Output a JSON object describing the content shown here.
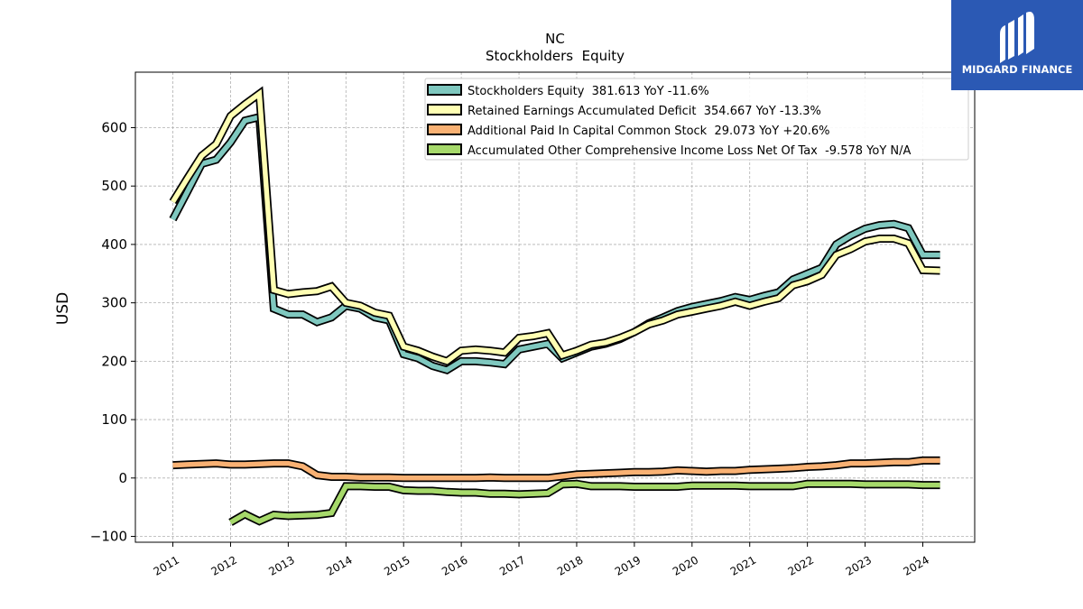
{
  "logo": {
    "text": "MIDGARD FINANCE",
    "bg_color": "#2b59b4",
    "icon": "midgard-logo-icon"
  },
  "chart_data": {
    "type": "line",
    "title": "NC",
    "subtitle": "Stockholders  Equity",
    "xlabel": "",
    "ylabel": "USD",
    "ylim": [
      -110,
      695
    ],
    "xlim": [
      2010.35,
      2024.9
    ],
    "grid": true,
    "legend_position": "top-right",
    "yticks": [
      -100,
      0,
      100,
      200,
      300,
      400,
      500,
      600
    ],
    "ytick_labels": [
      "−100",
      "0",
      "100",
      "200",
      "300",
      "400",
      "500",
      "600"
    ],
    "xticks": [
      2011,
      2012,
      2013,
      2014,
      2015,
      2016,
      2017,
      2018,
      2019,
      2020,
      2021,
      2022,
      2023,
      2024
    ],
    "xtick_labels": [
      "2011",
      "2012",
      "2013",
      "2014",
      "2015",
      "2016",
      "2017",
      "2018",
      "2019",
      "2020",
      "2021",
      "2022",
      "2023",
      "2024"
    ],
    "series": [
      {
        "name": "Stockholders Equity  381.613 YoY -11.6%",
        "color": "#7fc8bf",
        "x": [
          2011.0,
          2011.25,
          2011.5,
          2011.75,
          2012.0,
          2012.25,
          2012.5,
          2012.75,
          2013.0,
          2013.25,
          2013.5,
          2013.75,
          2014.0,
          2014.25,
          2014.5,
          2014.75,
          2015.0,
          2015.25,
          2015.5,
          2015.75,
          2016.0,
          2016.25,
          2016.5,
          2016.75,
          2017.0,
          2017.25,
          2017.5,
          2017.75,
          2018.0,
          2018.25,
          2018.5,
          2018.75,
          2019.0,
          2019.25,
          2019.5,
          2019.75,
          2020.0,
          2020.25,
          2020.5,
          2020.75,
          2021.0,
          2021.25,
          2021.5,
          2021.75,
          2022.0,
          2022.25,
          2022.5,
          2022.75,
          2023.0,
          2023.25,
          2023.5,
          2023.75,
          2024.0,
          2024.3
        ],
        "values": [
          443,
          490,
          538,
          545,
          575,
          612,
          618,
          290,
          280,
          280,
          267,
          275,
          295,
          290,
          275,
          270,
          212,
          205,
          192,
          185,
          200,
          200,
          198,
          195,
          220,
          225,
          230,
          205,
          215,
          225,
          230,
          238,
          250,
          265,
          275,
          286,
          293,
          298,
          303,
          310,
          305,
          312,
          318,
          340,
          350,
          360,
          400,
          415,
          427,
          433,
          435,
          428,
          382,
          382
        ]
      },
      {
        "name": "Retained Earnings Accumulated Deficit  354.667 YoY -13.3%",
        "color": "#ffffb3",
        "x": [
          2011.0,
          2011.25,
          2011.5,
          2011.75,
          2012.0,
          2012.25,
          2012.5,
          2012.75,
          2013.0,
          2013.25,
          2013.5,
          2013.75,
          2014.0,
          2014.25,
          2014.5,
          2014.75,
          2015.0,
          2015.25,
          2015.5,
          2015.75,
          2016.0,
          2016.25,
          2016.5,
          2016.75,
          2017.0,
          2017.25,
          2017.5,
          2017.75,
          2018.0,
          2018.25,
          2018.5,
          2018.75,
          2019.0,
          2019.25,
          2019.5,
          2019.75,
          2020.0,
          2020.25,
          2020.5,
          2020.75,
          2021.0,
          2021.25,
          2021.5,
          2021.75,
          2022.0,
          2022.25,
          2022.5,
          2022.75,
          2023.0,
          2023.25,
          2023.5,
          2023.75,
          2024.0,
          2024.3
        ],
        "values": [
          473,
          513,
          552,
          572,
          620,
          640,
          658,
          322,
          315,
          318,
          320,
          328,
          300,
          295,
          283,
          278,
          225,
          218,
          208,
          200,
          218,
          220,
          218,
          215,
          240,
          243,
          248,
          210,
          218,
          228,
          232,
          240,
          250,
          263,
          270,
          280,
          285,
          290,
          295,
          302,
          295,
          302,
          308,
          330,
          337,
          348,
          382,
          392,
          405,
          410,
          410,
          402,
          356,
          355
        ]
      },
      {
        "name": "Additional Paid In Capital Common Stock  29.073 YoY +20.6%",
        "color": "#f9b173",
        "x": [
          2011.0,
          2011.25,
          2011.5,
          2011.75,
          2012.0,
          2012.25,
          2012.5,
          2012.75,
          2013.0,
          2013.25,
          2013.5,
          2013.75,
          2014.0,
          2014.25,
          2014.5,
          2014.75,
          2015.0,
          2015.25,
          2015.5,
          2015.75,
          2016.0,
          2016.25,
          2016.5,
          2016.75,
          2017.0,
          2017.25,
          2017.5,
          2017.75,
          2018.0,
          2018.25,
          2018.5,
          2018.75,
          2019.0,
          2019.25,
          2019.5,
          2019.75,
          2020.0,
          2020.25,
          2020.5,
          2020.75,
          2021.0,
          2021.25,
          2021.5,
          2021.75,
          2022.0,
          2022.25,
          2022.5,
          2022.75,
          2023.0,
          2023.25,
          2023.5,
          2023.75,
          2024.0,
          2024.3
        ],
        "values": [
          22,
          23,
          24,
          25,
          23,
          23,
          24,
          25,
          25,
          20,
          5,
          2,
          2,
          1,
          1,
          1,
          0,
          0,
          0,
          0,
          0,
          0,
          1,
          0,
          0,
          0,
          0,
          3,
          6,
          7,
          8,
          9,
          10,
          10,
          11,
          13,
          12,
          11,
          12,
          12,
          14,
          15,
          16,
          17,
          19,
          20,
          22,
          25,
          25,
          26,
          27,
          27,
          30,
          30
        ]
      },
      {
        "name": "Accumulated Other Comprehensive Income Loss Net Of Tax  -9.578 YoY N/A",
        "color": "#a6d96a",
        "x": [
          2012.0,
          2012.25,
          2012.5,
          2012.75,
          2013.0,
          2013.25,
          2013.5,
          2013.75,
          2014.0,
          2014.25,
          2014.5,
          2014.75,
          2015.0,
          2015.25,
          2015.5,
          2015.75,
          2016.0,
          2016.25,
          2016.5,
          2016.75,
          2017.0,
          2017.25,
          2017.5,
          2017.75,
          2018.0,
          2018.25,
          2018.5,
          2018.75,
          2019.0,
          2019.25,
          2019.5,
          2019.75,
          2020.0,
          2020.25,
          2020.5,
          2020.75,
          2021.0,
          2021.25,
          2021.5,
          2021.75,
          2022.0,
          2022.25,
          2022.5,
          2022.75,
          2023.0,
          2023.25,
          2023.5,
          2023.75,
          2024.0,
          2024.3
        ],
        "values": [
          -76,
          -62,
          -74,
          -63,
          -65,
          -64,
          -63,
          -60,
          -14,
          -14,
          -15,
          -15,
          -21,
          -22,
          -22,
          -24,
          -25,
          -25,
          -27,
          -27,
          -28,
          -27,
          -26,
          -11,
          -10,
          -14,
          -14,
          -14,
          -15,
          -15,
          -15,
          -15,
          -13,
          -13,
          -13,
          -13,
          -14,
          -14,
          -14,
          -14,
          -10,
          -10,
          -10,
          -10,
          -11,
          -11,
          -11,
          -11,
          -12,
          -12
        ]
      }
    ]
  }
}
